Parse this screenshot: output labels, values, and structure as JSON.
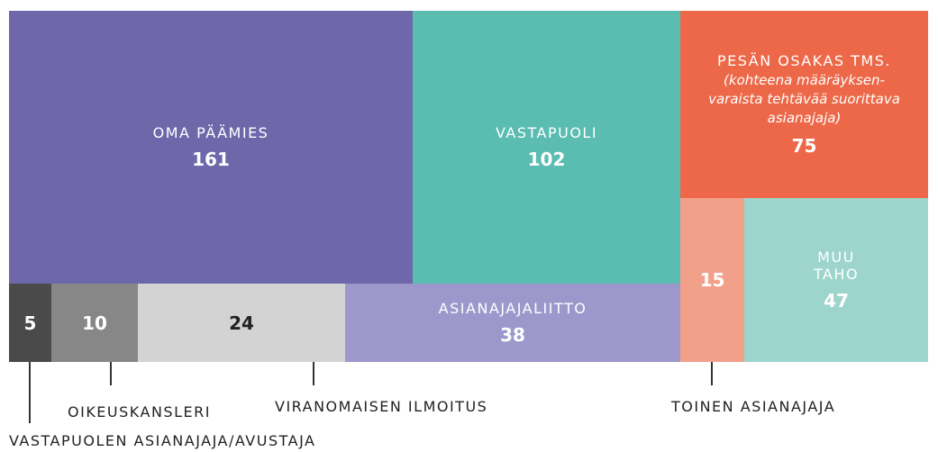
{
  "chart_data": {
    "type": "treemap",
    "categories": [
      "OMA PÄÄMIES",
      "VASTAPUOLI",
      "PESÄN OSAKAS TMS.",
      "MUU TAHO",
      "TOINEN ASIANAJAJA",
      "ASIANAJAJALIITTO",
      "VIRANOMAISEN ILMOITUS",
      "OIKEUSKANSLERI",
      "VASTAPUOLEN ASIANAJAJA/AVUSTAJA"
    ],
    "notes": [
      null,
      null,
      "(kohteena määräyksen-varaista tehtävää suorittava asianajaja)",
      null,
      null,
      null,
      null,
      null,
      null
    ],
    "values": [
      161,
      102,
      75,
      47,
      15,
      38,
      24,
      10,
      5
    ],
    "colors": [
      "#6e68ab",
      "#5bbcb2",
      "#ec6848",
      "#9dd5cd",
      "#f3a08b",
      "#9d98cb",
      "#d3d3d3",
      "#878787",
      "#4a4a4a"
    ]
  }
}
